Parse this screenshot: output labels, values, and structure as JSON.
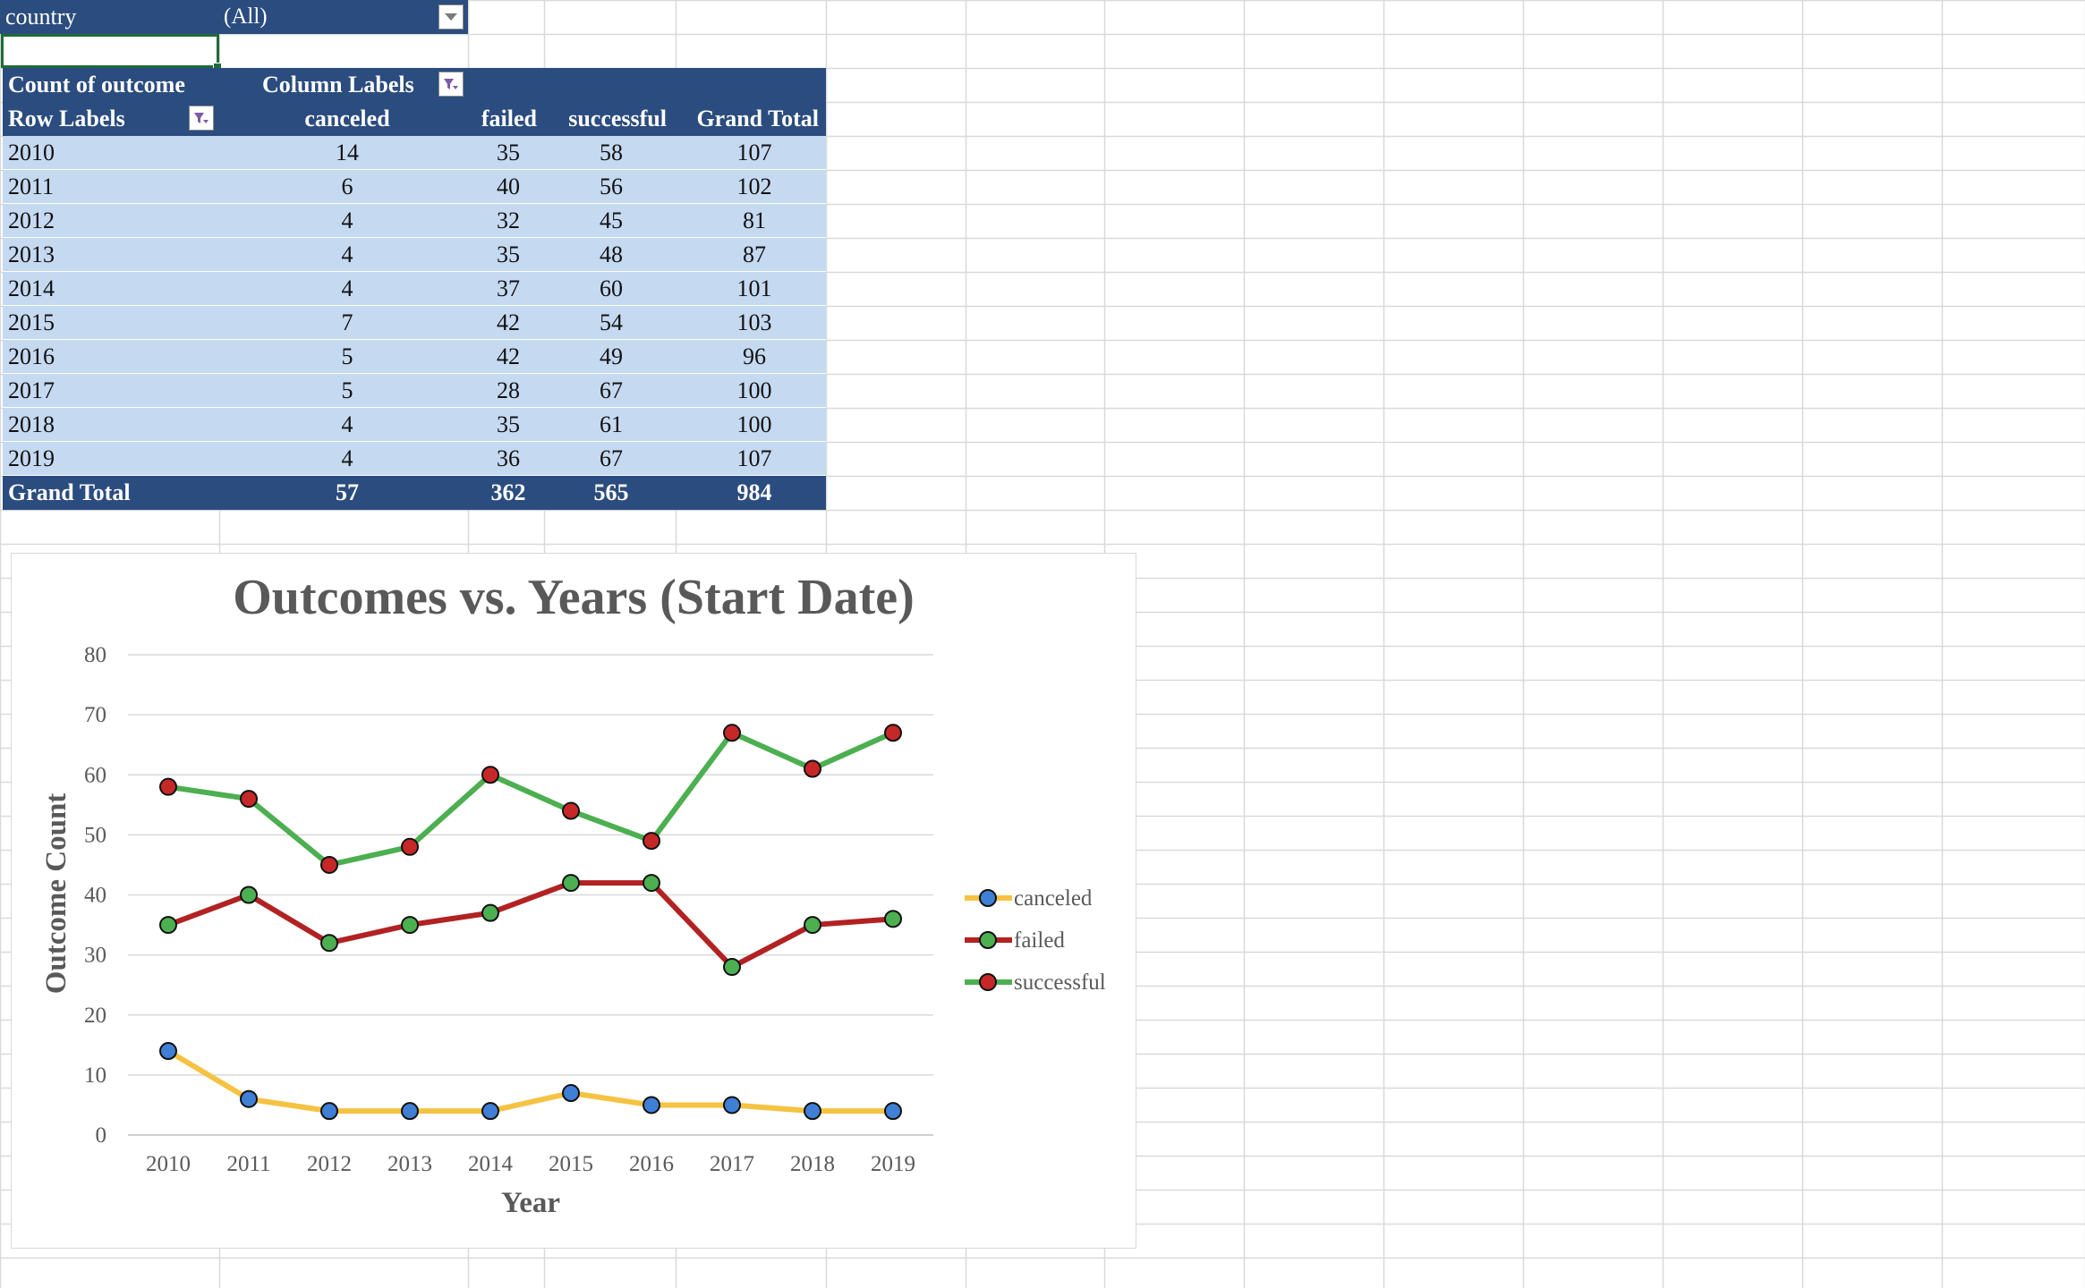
{
  "filter": {
    "field": "country",
    "value": "(All)"
  },
  "pivot": {
    "value_header": "Count of outcome",
    "column_labels": "Column Labels",
    "row_labels": "Row Labels",
    "columns": [
      "canceled",
      "failed",
      "successful",
      "Grand Total"
    ],
    "rows": [
      {
        "label": "2010",
        "values": [
          "14",
          "35",
          "58",
          "107"
        ]
      },
      {
        "label": "2011",
        "values": [
          "6",
          "40",
          "56",
          "102"
        ]
      },
      {
        "label": "2012",
        "values": [
          "4",
          "32",
          "45",
          "81"
        ]
      },
      {
        "label": "2013",
        "values": [
          "4",
          "35",
          "48",
          "87"
        ]
      },
      {
        "label": "2014",
        "values": [
          "4",
          "37",
          "60",
          "101"
        ]
      },
      {
        "label": "2015",
        "values": [
          "7",
          "42",
          "54",
          "103"
        ]
      },
      {
        "label": "2016",
        "values": [
          "5",
          "42",
          "49",
          "96"
        ]
      },
      {
        "label": "2017",
        "values": [
          "5",
          "28",
          "67",
          "100"
        ]
      },
      {
        "label": "2018",
        "values": [
          "4",
          "35",
          "61",
          "100"
        ]
      },
      {
        "label": "2019",
        "values": [
          "4",
          "36",
          "67",
          "107"
        ]
      }
    ],
    "grand_total": {
      "label": "Grand Total",
      "values": [
        "57",
        "362",
        "565",
        "984"
      ]
    }
  },
  "chart_data": {
    "type": "line",
    "title": "Outcomes vs. Years (Start Date)",
    "xlabel": "Year",
    "ylabel": "Outcome Count",
    "categories": [
      "2010",
      "2011",
      "2012",
      "2013",
      "2014",
      "2015",
      "2016",
      "2017",
      "2018",
      "2019"
    ],
    "ylim": [
      0,
      80
    ],
    "yticks": [
      0,
      10,
      20,
      30,
      40,
      50,
      60,
      70,
      80
    ],
    "grid": true,
    "legend": "right",
    "series": [
      {
        "name": "canceled",
        "values": [
          14,
          6,
          4,
          4,
          4,
          7,
          5,
          5,
          4,
          4
        ],
        "line_color": "#f5c242",
        "marker_color": "#3f7fd6"
      },
      {
        "name": "failed",
        "values": [
          35,
          40,
          32,
          35,
          37,
          42,
          42,
          28,
          35,
          36
        ],
        "line_color": "#b22222",
        "marker_color": "#4caf50"
      },
      {
        "name": "successful",
        "values": [
          58,
          56,
          45,
          48,
          60,
          54,
          49,
          67,
          61,
          67
        ],
        "line_color": "#4caf50",
        "marker_color": "#c62828"
      }
    ]
  },
  "colors": {
    "header_bg": "#2b4c7e",
    "row_bg": "#c5d9f1",
    "grid": "#d9d9d9"
  }
}
